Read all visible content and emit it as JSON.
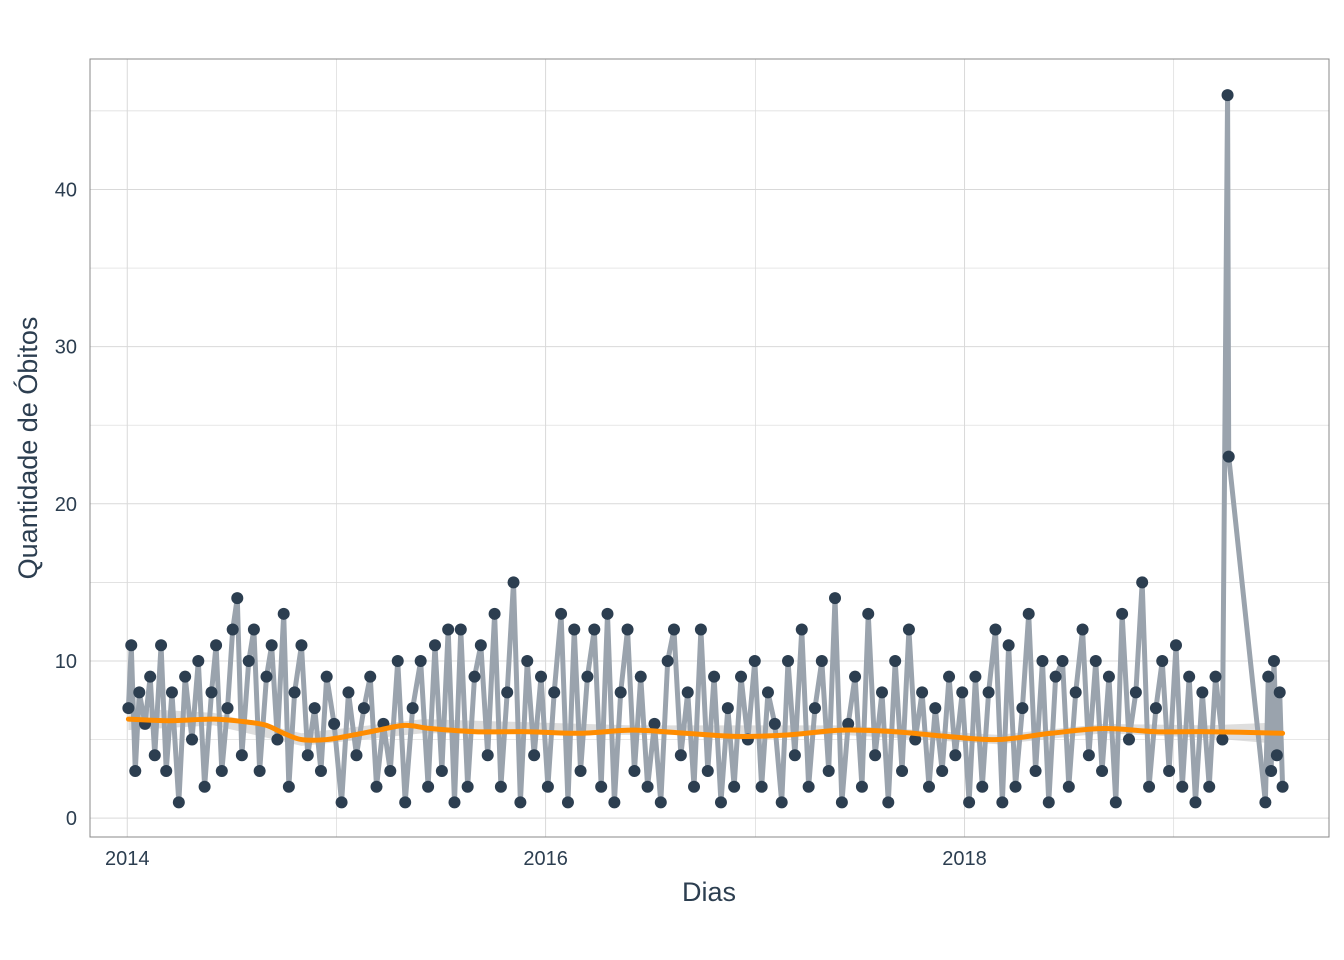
{
  "chart_data": {
    "type": "line",
    "title": "",
    "xlabel": "Dias",
    "ylabel": "Quantidade de Óbitos",
    "x_ticks": [
      "2014",
      "2016",
      "2018"
    ],
    "y_ticks": [
      0,
      10,
      20,
      30,
      40
    ],
    "xlim": [
      "2013-10-28",
      "2019-09-29"
    ],
    "ylim": [
      -1.2,
      48.3
    ],
    "grid": true,
    "legend": "none",
    "colors": {
      "raw_line": "#9aa3ad",
      "points": "#2c3e50",
      "smooth_line": "#ff8c00",
      "confidence_band": "#c8c8c8",
      "grid": "#d9d9d9",
      "axis_text": "#2c3e50"
    },
    "series": [
      {
        "role": "observations",
        "style": "line-and-points",
        "points": [
          [
            "2014-01-03",
            7
          ],
          [
            "2014-01-08",
            11
          ],
          [
            "2014-01-15",
            3
          ],
          [
            "2014-01-22",
            8
          ],
          [
            "2014-02-01",
            6
          ],
          [
            "2014-02-10",
            9
          ],
          [
            "2014-02-18",
            4
          ],
          [
            "2014-03-01",
            11
          ],
          [
            "2014-03-10",
            3
          ],
          [
            "2014-03-20",
            8
          ],
          [
            "2014-04-01",
            1
          ],
          [
            "2014-04-12",
            9
          ],
          [
            "2014-04-24",
            5
          ],
          [
            "2014-05-05",
            10
          ],
          [
            "2014-05-16",
            2
          ],
          [
            "2014-05-28",
            8
          ],
          [
            "2014-06-05",
            11
          ],
          [
            "2014-06-15",
            3
          ],
          [
            "2014-06-25",
            7
          ],
          [
            "2014-07-04",
            12
          ],
          [
            "2014-07-12",
            14
          ],
          [
            "2014-07-20",
            4
          ],
          [
            "2014-08-01",
            10
          ],
          [
            "2014-08-10",
            12
          ],
          [
            "2014-08-20",
            3
          ],
          [
            "2014-09-01",
            9
          ],
          [
            "2014-09-10",
            11
          ],
          [
            "2014-09-20",
            5
          ],
          [
            "2014-10-01",
            13
          ],
          [
            "2014-10-10",
            2
          ],
          [
            "2014-10-20",
            8
          ],
          [
            "2014-11-01",
            11
          ],
          [
            "2014-11-12",
            4
          ],
          [
            "2014-11-24",
            7
          ],
          [
            "2014-12-05",
            3
          ],
          [
            "2014-12-15",
            9
          ],
          [
            "2014-12-28",
            6
          ],
          [
            "2015-01-10",
            1
          ],
          [
            "2015-01-22",
            8
          ],
          [
            "2015-02-05",
            4
          ],
          [
            "2015-02-18",
            7
          ],
          [
            "2015-03-01",
            9
          ],
          [
            "2015-03-12",
            2
          ],
          [
            "2015-03-24",
            6
          ],
          [
            "2015-04-05",
            3
          ],
          [
            "2015-04-18",
            10
          ],
          [
            "2015-05-01",
            1
          ],
          [
            "2015-05-14",
            7
          ],
          [
            "2015-05-28",
            10
          ],
          [
            "2015-06-10",
            2
          ],
          [
            "2015-06-22",
            11
          ],
          [
            "2015-07-04",
            3
          ],
          [
            "2015-07-15",
            12
          ],
          [
            "2015-07-26",
            1
          ],
          [
            "2015-08-06",
            12
          ],
          [
            "2015-08-18",
            2
          ],
          [
            "2015-08-30",
            9
          ],
          [
            "2015-09-10",
            11
          ],
          [
            "2015-09-22",
            4
          ],
          [
            "2015-10-04",
            13
          ],
          [
            "2015-10-15",
            2
          ],
          [
            "2015-10-26",
            8
          ],
          [
            "2015-11-06",
            15
          ],
          [
            "2015-11-18",
            1
          ],
          [
            "2015-11-30",
            10
          ],
          [
            "2015-12-12",
            4
          ],
          [
            "2015-12-24",
            9
          ],
          [
            "2016-01-05",
            2
          ],
          [
            "2016-01-16",
            8
          ],
          [
            "2016-01-28",
            13
          ],
          [
            "2016-02-09",
            1
          ],
          [
            "2016-02-20",
            12
          ],
          [
            "2016-03-02",
            3
          ],
          [
            "2016-03-14",
            9
          ],
          [
            "2016-03-26",
            12
          ],
          [
            "2016-04-07",
            2
          ],
          [
            "2016-04-18",
            13
          ],
          [
            "2016-04-30",
            1
          ],
          [
            "2016-05-11",
            8
          ],
          [
            "2016-05-23",
            12
          ],
          [
            "2016-06-04",
            3
          ],
          [
            "2016-06-15",
            9
          ],
          [
            "2016-06-27",
            2
          ],
          [
            "2016-07-09",
            6
          ],
          [
            "2016-07-20",
            1
          ],
          [
            "2016-08-01",
            10
          ],
          [
            "2016-08-12",
            12
          ],
          [
            "2016-08-24",
            4
          ],
          [
            "2016-09-05",
            8
          ],
          [
            "2016-09-16",
            2
          ],
          [
            "2016-09-28",
            12
          ],
          [
            "2016-10-10",
            3
          ],
          [
            "2016-10-21",
            9
          ],
          [
            "2016-11-02",
            1
          ],
          [
            "2016-11-14",
            7
          ],
          [
            "2016-11-25",
            2
          ],
          [
            "2016-12-07",
            9
          ],
          [
            "2016-12-19",
            5
          ],
          [
            "2016-12-31",
            10
          ],
          [
            "2017-01-12",
            2
          ],
          [
            "2017-01-23",
            8
          ],
          [
            "2017-02-04",
            6
          ],
          [
            "2017-02-16",
            1
          ],
          [
            "2017-02-27",
            10
          ],
          [
            "2017-03-11",
            4
          ],
          [
            "2017-03-23",
            12
          ],
          [
            "2017-04-04",
            2
          ],
          [
            "2017-04-15",
            7
          ],
          [
            "2017-04-27",
            10
          ],
          [
            "2017-05-09",
            3
          ],
          [
            "2017-05-20",
            14
          ],
          [
            "2017-06-01",
            1
          ],
          [
            "2017-06-12",
            6
          ],
          [
            "2017-06-24",
            9
          ],
          [
            "2017-07-06",
            2
          ],
          [
            "2017-07-17",
            13
          ],
          [
            "2017-07-29",
            4
          ],
          [
            "2017-08-10",
            8
          ],
          [
            "2017-08-21",
            1
          ],
          [
            "2017-09-02",
            10
          ],
          [
            "2017-09-14",
            3
          ],
          [
            "2017-09-26",
            12
          ],
          [
            "2017-10-07",
            5
          ],
          [
            "2017-10-19",
            8
          ],
          [
            "2017-10-31",
            2
          ],
          [
            "2017-11-11",
            7
          ],
          [
            "2017-11-23",
            3
          ],
          [
            "2017-12-05",
            9
          ],
          [
            "2017-12-16",
            4
          ],
          [
            "2017-12-28",
            8
          ],
          [
            "2018-01-09",
            1
          ],
          [
            "2018-01-20",
            9
          ],
          [
            "2018-02-01",
            2
          ],
          [
            "2018-02-12",
            8
          ],
          [
            "2018-02-24",
            12
          ],
          [
            "2018-03-08",
            1
          ],
          [
            "2018-03-19",
            11
          ],
          [
            "2018-03-31",
            2
          ],
          [
            "2018-04-12",
            7
          ],
          [
            "2018-04-23",
            13
          ],
          [
            "2018-05-05",
            3
          ],
          [
            "2018-05-17",
            10
          ],
          [
            "2018-05-28",
            1
          ],
          [
            "2018-06-09",
            9
          ],
          [
            "2018-06-21",
            10
          ],
          [
            "2018-07-02",
            2
          ],
          [
            "2018-07-14",
            8
          ],
          [
            "2018-07-26",
            12
          ],
          [
            "2018-08-06",
            4
          ],
          [
            "2018-08-18",
            10
          ],
          [
            "2018-08-29",
            3
          ],
          [
            "2018-09-10",
            9
          ],
          [
            "2018-09-22",
            1
          ],
          [
            "2018-10-03",
            13
          ],
          [
            "2018-10-15",
            5
          ],
          [
            "2018-10-27",
            8
          ],
          [
            "2018-11-07",
            15
          ],
          [
            "2018-11-19",
            2
          ],
          [
            "2018-12-01",
            7
          ],
          [
            "2018-12-12",
            10
          ],
          [
            "2018-12-24",
            3
          ],
          [
            "2019-01-05",
            11
          ],
          [
            "2019-01-16",
            2
          ],
          [
            "2019-01-28",
            9
          ],
          [
            "2019-02-08",
            1
          ],
          [
            "2019-02-20",
            8
          ],
          [
            "2019-03-04",
            2
          ],
          [
            "2019-03-15",
            9
          ],
          [
            "2019-03-27",
            5
          ],
          [
            "2019-04-05",
            46
          ],
          [
            "2019-04-07",
            23
          ],
          [
            "2019-06-10",
            1
          ],
          [
            "2019-06-15",
            9
          ],
          [
            "2019-06-20",
            3
          ],
          [
            "2019-06-25",
            10
          ],
          [
            "2019-06-30",
            4
          ],
          [
            "2019-07-05",
            8
          ],
          [
            "2019-07-10",
            2
          ]
        ]
      },
      {
        "role": "smoothed-trend",
        "style": "smooth-line-with-band",
        "points": [
          [
            "2014-01-03",
            6.3
          ],
          [
            "2014-03-15",
            6.2
          ],
          [
            "2014-06-01",
            6.3
          ],
          [
            "2014-08-01",
            6.1
          ],
          [
            "2014-09-01",
            5.9
          ],
          [
            "2014-10-01",
            5.4
          ],
          [
            "2014-11-01",
            5.0
          ],
          [
            "2014-12-15",
            5.0
          ],
          [
            "2015-02-01",
            5.3
          ],
          [
            "2015-03-15",
            5.6
          ],
          [
            "2015-05-01",
            5.9
          ],
          [
            "2015-06-15",
            5.7
          ],
          [
            "2015-09-01",
            5.5
          ],
          [
            "2015-12-01",
            5.5
          ],
          [
            "2016-03-01",
            5.4
          ],
          [
            "2016-06-01",
            5.6
          ],
          [
            "2016-09-01",
            5.4
          ],
          [
            "2016-12-01",
            5.2
          ],
          [
            "2017-03-01",
            5.3
          ],
          [
            "2017-06-01",
            5.6
          ],
          [
            "2017-09-01",
            5.5
          ],
          [
            "2017-12-01",
            5.2
          ],
          [
            "2018-03-01",
            5.0
          ],
          [
            "2018-06-01",
            5.4
          ],
          [
            "2018-09-01",
            5.7
          ],
          [
            "2018-12-01",
            5.5
          ],
          [
            "2019-03-01",
            5.5
          ],
          [
            "2019-07-10",
            5.4
          ]
        ],
        "band": [
          [
            "2014-01-03",
            5.6,
            7.0
          ],
          [
            "2014-06-01",
            5.9,
            6.7
          ],
          [
            "2014-11-01",
            4.6,
            5.4
          ],
          [
            "2015-06-01",
            5.4,
            6.3
          ],
          [
            "2016-06-01",
            5.3,
            5.9
          ],
          [
            "2017-06-01",
            5.3,
            5.9
          ],
          [
            "2018-03-01",
            4.7,
            5.3
          ],
          [
            "2018-09-01",
            5.4,
            6.0
          ],
          [
            "2019-03-01",
            5.1,
            5.9
          ],
          [
            "2019-07-10",
            4.7,
            6.1
          ]
        ]
      }
    ]
  }
}
